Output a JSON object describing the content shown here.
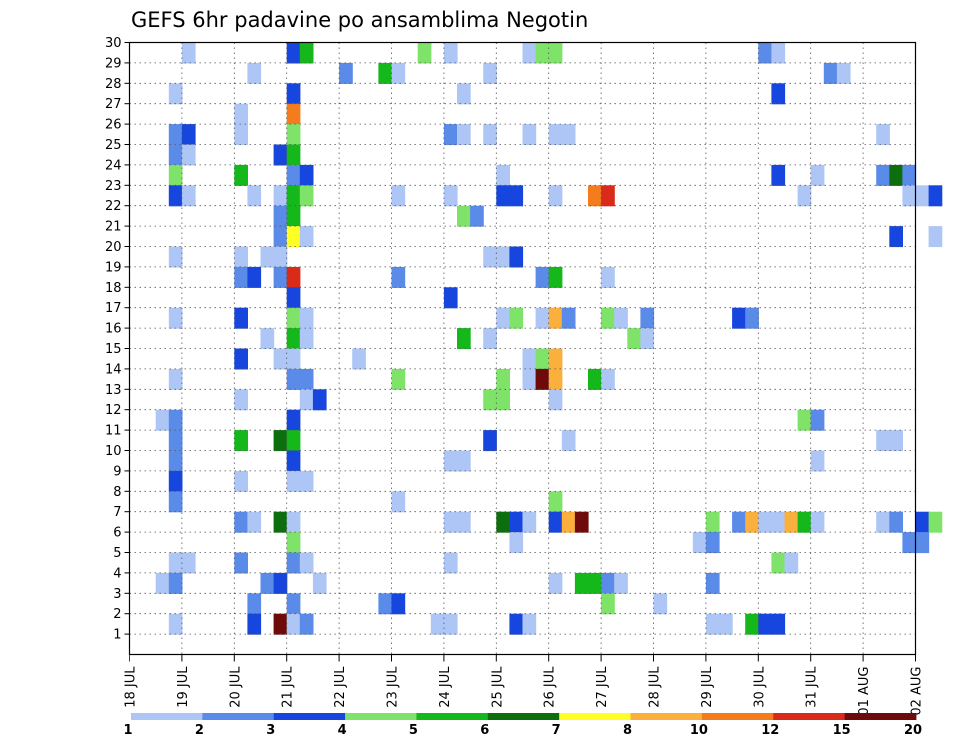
{
  "chart_data": {
    "type": "heatmap",
    "title": "GEFS 6hr padavine po ansamblima Negotin",
    "x_tick_labels": [
      "18 JUL",
      "19 JUL",
      "20 JUL",
      "21 JUL",
      "22 JUL",
      "23 JUL",
      "24 JUL",
      "25 JUL",
      "26 JUL",
      "27 JUL",
      "28 JUL",
      "29 JUL",
      "30 JUL",
      "31 JUL",
      "01 AUG",
      "02 AUG"
    ],
    "y_tick_labels": [
      "1",
      "2",
      "3",
      "4",
      "5",
      "6",
      "7",
      "8",
      "9",
      "10",
      "11",
      "12",
      "13",
      "14",
      "15",
      "16",
      "17",
      "18",
      "19",
      "20",
      "21",
      "22",
      "23",
      "24",
      "25",
      "26",
      "27",
      "28",
      "29",
      "30"
    ],
    "xlim": [
      "18 JUL 00Z",
      "02 AUG 00Z"
    ],
    "ylim": [
      0,
      30
    ],
    "grid": true,
    "x_step_hours": 6,
    "colorbar": {
      "labels": [
        "1",
        "2",
        "3",
        "4",
        "5",
        "6",
        "7",
        "8",
        "10",
        "12",
        "15",
        "20"
      ],
      "colors": [
        "#aec6f5",
        "#5a8be8",
        "#1746de",
        "#7fe36a",
        "#14b81a",
        "#0c6e0c",
        "#ffff26",
        "#fbb03d",
        "#f47c1c",
        "#da2a1a",
        "#6e0a0a"
      ]
    },
    "cells_format": "[member, 6h step index from 18 JUL 00Z, color class index 0-10]",
    "cells": [
      [
        30,
        4,
        0
      ],
      [
        30,
        12,
        2
      ],
      [
        30,
        13,
        4
      ],
      [
        30,
        22,
        3
      ],
      [
        30,
        24,
        0
      ],
      [
        30,
        30,
        0
      ],
      [
        30,
        31,
        3
      ],
      [
        30,
        32,
        3
      ],
      [
        30,
        48,
        1
      ],
      [
        30,
        49,
        0
      ],
      [
        29,
        9,
        0
      ],
      [
        29,
        16,
        1
      ],
      [
        29,
        19,
        4
      ],
      [
        29,
        20,
        0
      ],
      [
        29,
        27,
        0
      ],
      [
        29,
        53,
        1
      ],
      [
        29,
        54,
        0
      ],
      [
        28,
        3,
        0
      ],
      [
        28,
        12,
        2
      ],
      [
        28,
        25,
        0
      ],
      [
        28,
        49,
        2
      ],
      [
        27,
        8,
        0
      ],
      [
        27,
        12,
        8
      ],
      [
        26,
        3,
        1
      ],
      [
        26,
        4,
        2
      ],
      [
        26,
        8,
        0
      ],
      [
        26,
        12,
        3
      ],
      [
        26,
        24,
        1
      ],
      [
        26,
        25,
        0
      ],
      [
        26,
        27,
        0
      ],
      [
        26,
        30,
        0
      ],
      [
        26,
        32,
        0
      ],
      [
        26,
        33,
        0
      ],
      [
        26,
        57,
        0
      ],
      [
        25,
        3,
        1
      ],
      [
        25,
        4,
        0
      ],
      [
        25,
        11,
        2
      ],
      [
        25,
        12,
        4
      ],
      [
        24,
        3,
        3
      ],
      [
        24,
        8,
        4
      ],
      [
        24,
        12,
        1
      ],
      [
        24,
        13,
        2
      ],
      [
        24,
        28,
        0
      ],
      [
        24,
        49,
        2
      ],
      [
        24,
        52,
        0
      ],
      [
        24,
        57,
        1
      ],
      [
        24,
        58,
        5
      ],
      [
        24,
        59,
        1
      ],
      [
        23,
        3,
        2
      ],
      [
        23,
        4,
        0
      ],
      [
        23,
        9,
        0
      ],
      [
        23,
        11,
        0
      ],
      [
        23,
        12,
        4
      ],
      [
        23,
        13,
        3
      ],
      [
        23,
        20,
        0
      ],
      [
        23,
        24,
        0
      ],
      [
        23,
        28,
        2
      ],
      [
        23,
        29,
        2
      ],
      [
        23,
        32,
        0
      ],
      [
        23,
        35,
        8
      ],
      [
        23,
        36,
        9
      ],
      [
        23,
        51,
        0
      ],
      [
        23,
        59,
        0
      ],
      [
        23,
        60,
        0
      ],
      [
        23,
        61,
        2
      ],
      [
        22,
        11,
        1
      ],
      [
        22,
        12,
        4
      ],
      [
        22,
        25,
        3
      ],
      [
        22,
        26,
        1
      ],
      [
        21,
        11,
        1
      ],
      [
        21,
        12,
        6
      ],
      [
        21,
        13,
        0
      ],
      [
        21,
        58,
        2
      ],
      [
        21,
        61,
        0
      ],
      [
        20,
        3,
        0
      ],
      [
        20,
        8,
        0
      ],
      [
        20,
        10,
        0
      ],
      [
        20,
        11,
        0
      ],
      [
        20,
        27,
        0
      ],
      [
        20,
        28,
        0
      ],
      [
        20,
        29,
        2
      ],
      [
        19,
        8,
        1
      ],
      [
        19,
        9,
        2
      ],
      [
        19,
        11,
        1
      ],
      [
        19,
        12,
        9
      ],
      [
        19,
        20,
        1
      ],
      [
        19,
        31,
        1
      ],
      [
        19,
        32,
        4
      ],
      [
        19,
        36,
        0
      ],
      [
        18,
        12,
        2
      ],
      [
        18,
        24,
        2
      ],
      [
        17,
        3,
        0
      ],
      [
        17,
        8,
        2
      ],
      [
        17,
        12,
        3
      ],
      [
        17,
        13,
        0
      ],
      [
        17,
        28,
        0
      ],
      [
        17,
        29,
        3
      ],
      [
        17,
        31,
        0
      ],
      [
        17,
        32,
        7
      ],
      [
        17,
        33,
        1
      ],
      [
        17,
        36,
        3
      ],
      [
        17,
        37,
        0
      ],
      [
        17,
        39,
        1
      ],
      [
        17,
        46,
        2
      ],
      [
        17,
        47,
        1
      ],
      [
        16,
        10,
        0
      ],
      [
        16,
        12,
        4
      ],
      [
        16,
        13,
        0
      ],
      [
        16,
        25,
        4
      ],
      [
        16,
        27,
        0
      ],
      [
        16,
        38,
        3
      ],
      [
        16,
        39,
        0
      ],
      [
        15,
        8,
        2
      ],
      [
        15,
        11,
        0
      ],
      [
        15,
        12,
        0
      ],
      [
        15,
        17,
        0
      ],
      [
        15,
        30,
        0
      ],
      [
        15,
        31,
        3
      ],
      [
        15,
        32,
        7
      ],
      [
        14,
        3,
        0
      ],
      [
        14,
        12,
        1
      ],
      [
        14,
        13,
        1
      ],
      [
        14,
        20,
        3
      ],
      [
        14,
        28,
        3
      ],
      [
        14,
        30,
        0
      ],
      [
        14,
        31,
        10
      ],
      [
        14,
        32,
        7
      ],
      [
        14,
        35,
        4
      ],
      [
        14,
        36,
        0
      ],
      [
        13,
        8,
        0
      ],
      [
        13,
        13,
        0
      ],
      [
        13,
        14,
        2
      ],
      [
        13,
        27,
        3
      ],
      [
        13,
        28,
        3
      ],
      [
        13,
        32,
        0
      ],
      [
        12,
        2,
        0
      ],
      [
        12,
        3,
        1
      ],
      [
        12,
        12,
        2
      ],
      [
        12,
        51,
        3
      ],
      [
        12,
        52,
        1
      ],
      [
        11,
        3,
        1
      ],
      [
        11,
        8,
        4
      ],
      [
        11,
        11,
        5
      ],
      [
        11,
        12,
        4
      ],
      [
        11,
        27,
        2
      ],
      [
        11,
        33,
        0
      ],
      [
        11,
        57,
        0
      ],
      [
        11,
        58,
        0
      ],
      [
        10,
        3,
        1
      ],
      [
        10,
        12,
        2
      ],
      [
        10,
        24,
        0
      ],
      [
        10,
        25,
        0
      ],
      [
        10,
        52,
        0
      ],
      [
        9,
        3,
        2
      ],
      [
        9,
        8,
        0
      ],
      [
        9,
        12,
        0
      ],
      [
        9,
        13,
        0
      ],
      [
        8,
        3,
        1
      ],
      [
        8,
        20,
        0
      ],
      [
        8,
        32,
        3
      ],
      [
        7,
        8,
        1
      ],
      [
        7,
        9,
        0
      ],
      [
        7,
        11,
        5
      ],
      [
        7,
        12,
        0
      ],
      [
        7,
        24,
        0
      ],
      [
        7,
        25,
        0
      ],
      [
        7,
        28,
        5
      ],
      [
        7,
        29,
        2
      ],
      [
        7,
        30,
        0
      ],
      [
        7,
        32,
        2
      ],
      [
        7,
        33,
        7
      ],
      [
        7,
        34,
        10
      ],
      [
        7,
        44,
        3
      ],
      [
        7,
        46,
        1
      ],
      [
        7,
        47,
        7
      ],
      [
        7,
        48,
        0
      ],
      [
        7,
        49,
        0
      ],
      [
        7,
        50,
        7
      ],
      [
        7,
        51,
        4
      ],
      [
        7,
        52,
        0
      ],
      [
        7,
        57,
        0
      ],
      [
        7,
        58,
        1
      ],
      [
        7,
        60,
        2
      ],
      [
        7,
        61,
        3
      ],
      [
        6,
        12,
        3
      ],
      [
        6,
        29,
        0
      ],
      [
        6,
        43,
        0
      ],
      [
        6,
        44,
        1
      ],
      [
        6,
        59,
        1
      ],
      [
        6,
        60,
        1
      ],
      [
        5,
        3,
        0
      ],
      [
        5,
        4,
        0
      ],
      [
        5,
        8,
        1
      ],
      [
        5,
        12,
        1
      ],
      [
        5,
        13,
        0
      ],
      [
        5,
        24,
        0
      ],
      [
        5,
        49,
        3
      ],
      [
        5,
        50,
        0
      ],
      [
        4,
        2,
        0
      ],
      [
        4,
        3,
        1
      ],
      [
        4,
        10,
        1
      ],
      [
        4,
        11,
        2
      ],
      [
        4,
        14,
        0
      ],
      [
        4,
        32,
        0
      ],
      [
        4,
        34,
        4
      ],
      [
        4,
        35,
        4
      ],
      [
        4,
        36,
        1
      ],
      [
        4,
        37,
        0
      ],
      [
        4,
        44,
        1
      ],
      [
        3,
        9,
        1
      ],
      [
        3,
        12,
        1
      ],
      [
        3,
        19,
        1
      ],
      [
        3,
        20,
        2
      ],
      [
        3,
        36,
        3
      ],
      [
        3,
        40,
        0
      ],
      [
        2,
        3,
        0
      ],
      [
        2,
        9,
        2
      ],
      [
        2,
        11,
        10
      ],
      [
        2,
        12,
        0
      ],
      [
        2,
        13,
        1
      ],
      [
        2,
        23,
        0
      ],
      [
        2,
        24,
        0
      ],
      [
        2,
        29,
        2
      ],
      [
        2,
        30,
        0
      ],
      [
        2,
        44,
        0
      ],
      [
        2,
        45,
        0
      ],
      [
        2,
        47,
        4
      ],
      [
        2,
        48,
        2
      ],
      [
        2,
        49,
        2
      ]
    ]
  }
}
